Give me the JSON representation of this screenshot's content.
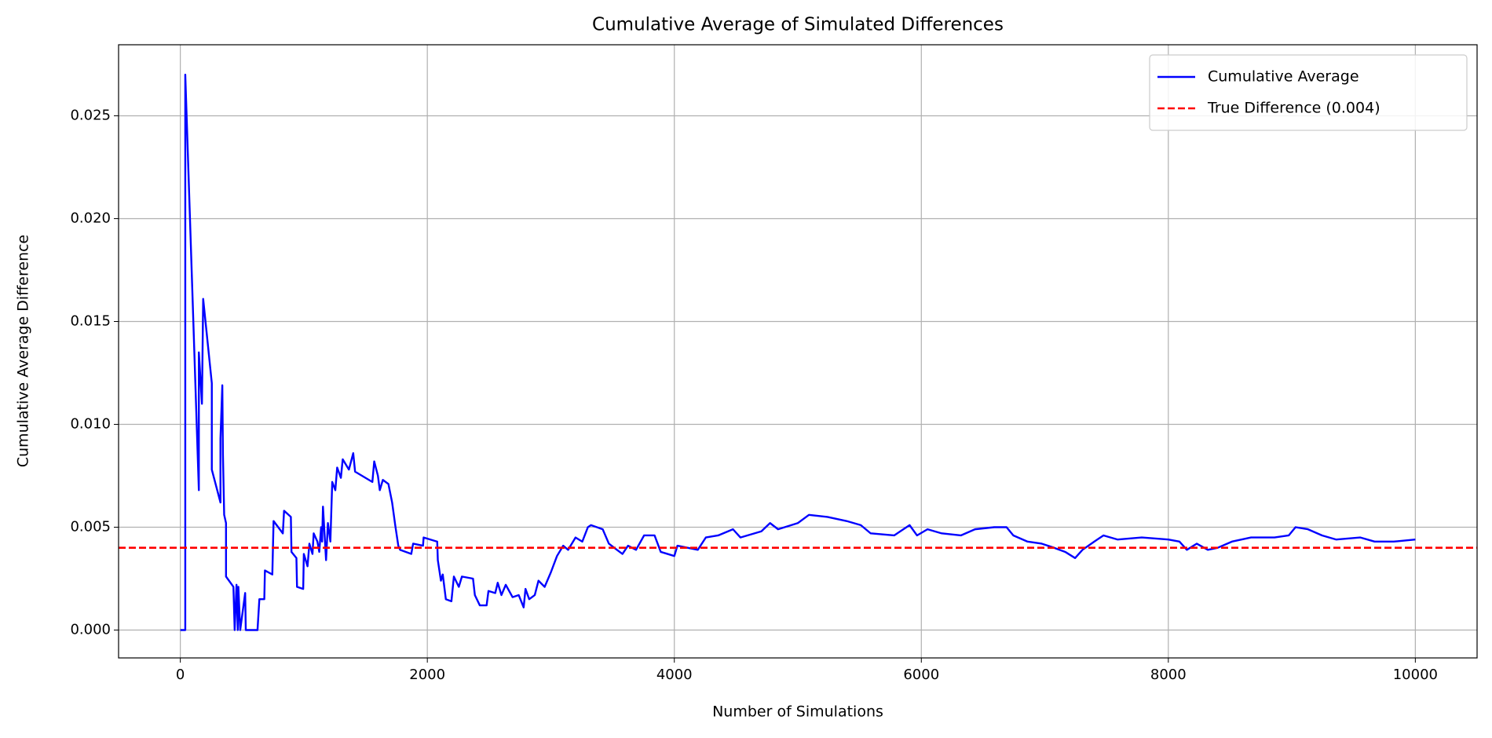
{
  "chart_data": {
    "type": "line",
    "title": "Cumulative Average of Simulated Differences",
    "x_label": "Number of Simulations",
    "y_label": "Cumulative Average Difference",
    "xlim": [
      -500,
      10500
    ],
    "ylim": [
      -0.001355,
      0.028455
    ],
    "xticks": [
      0,
      2000,
      4000,
      6000,
      8000,
      10000
    ],
    "yticks": [
      {
        "value": 0,
        "label": "0.000"
      },
      0.005,
      {
        "value": 0.01,
        "label": "0.010"
      },
      0.015,
      {
        "value": 0.02,
        "label": "0.020"
      },
      0.025
    ],
    "grid": true,
    "legend": "upper right",
    "series": [
      {
        "name": "Cumulative Average",
        "color": "#0000ff",
        "x": [
          0,
          40,
          40,
          150,
          150,
          175,
          185,
          255,
          255,
          325,
          325,
          340,
          345,
          355,
          370,
          370,
          430,
          440,
          455,
          465,
          470,
          485,
          525,
          530,
          625,
          640,
          680,
          685,
          745,
          755,
          830,
          840,
          895,
          900,
          940,
          945,
          995,
          1000,
          1030,
          1045,
          1070,
          1080,
          1110,
          1125,
          1140,
          1148,
          1155,
          1180,
          1195,
          1215,
          1230,
          1255,
          1270,
          1300,
          1315,
          1365,
          1400,
          1415,
          1555,
          1570,
          1600,
          1615,
          1640,
          1685,
          1715,
          1740,
          1765,
          1780,
          1870,
          1885,
          1965,
          1970,
          2080,
          2085,
          2110,
          2125,
          2150,
          2195,
          2215,
          2255,
          2280,
          2370,
          2385,
          2425,
          2480,
          2495,
          2550,
          2570,
          2600,
          2635,
          2690,
          2740,
          2780,
          2795,
          2825,
          2870,
          2900,
          2950,
          3000,
          3050,
          3100,
          3140,
          3200,
          3255,
          3300,
          3325,
          3420,
          3470,
          3535,
          3580,
          3625,
          3690,
          3755,
          3840,
          3890,
          4000,
          4025,
          4190,
          4255,
          4355,
          4475,
          4535,
          4705,
          4775,
          4840,
          5000,
          5090,
          5240,
          5395,
          5510,
          5590,
          5780,
          5905,
          5965,
          6050,
          6165,
          6320,
          6435,
          6590,
          6690,
          6745,
          6860,
          6975,
          7075,
          7165,
          7245,
          7305,
          7400,
          7475,
          7590,
          7785,
          8000,
          8090,
          8150,
          8230,
          8320,
          8400,
          8515,
          8670,
          8860,
          8975,
          9030,
          9130,
          9245,
          9360,
          9555,
          9670,
          9825,
          10000
        ],
        "values": [
          0,
          0,
          0.027,
          0.0068,
          0.0135,
          0.011,
          0.0161,
          0.012,
          0.0078,
          0.0062,
          0.0093,
          0.0119,
          0.0085,
          0.0056,
          0.0052,
          0.0026,
          0.0021,
          0,
          0.0022,
          0,
          0.0021,
          0,
          0.0018,
          0,
          0,
          0.0015,
          0.0015,
          0.0029,
          0.0027,
          0.0053,
          0.0047,
          0.0058,
          0.0055,
          0.0038,
          0.0035,
          0.0021,
          0.002,
          0.0037,
          0.0031,
          0.0042,
          0.0037,
          0.0047,
          0.0043,
          0.0038,
          0.005,
          0.0043,
          0.006,
          0.0034,
          0.0052,
          0.0043,
          0.0072,
          0.0068,
          0.0079,
          0.0074,
          0.0083,
          0.0078,
          0.0086,
          0.0077,
          0.0072,
          0.0082,
          0.0075,
          0.0068,
          0.0073,
          0.0071,
          0.0062,
          0.0051,
          0.0041,
          0.0039,
          0.0037,
          0.0042,
          0.0041,
          0.0045,
          0.0043,
          0.0034,
          0.0024,
          0.0027,
          0.0015,
          0.0014,
          0.0026,
          0.0021,
          0.0026,
          0.0025,
          0.0017,
          0.0012,
          0.0012,
          0.0019,
          0.0018,
          0.0023,
          0.0017,
          0.0022,
          0.0016,
          0.0017,
          0.0011,
          0.002,
          0.0015,
          0.0017,
          0.0024,
          0.0021,
          0.0028,
          0.0036,
          0.0041,
          0.0039,
          0.0045,
          0.0043,
          0.005,
          0.0051,
          0.0049,
          0.0042,
          0.0039,
          0.0037,
          0.0041,
          0.0039,
          0.0046,
          0.0046,
          0.0038,
          0.0036,
          0.0041,
          0.0039,
          0.0045,
          0.0046,
          0.0049,
          0.0045,
          0.0048,
          0.0052,
          0.0049,
          0.0052,
          0.0056,
          0.0055,
          0.0053,
          0.0051,
          0.0047,
          0.0046,
          0.0051,
          0.0046,
          0.0049,
          0.0047,
          0.0046,
          0.0049,
          0.005,
          0.005,
          0.0046,
          0.0043,
          0.0042,
          0.004,
          0.0038,
          0.0035,
          0.0039,
          0.0043,
          0.0046,
          0.0044,
          0.0045,
          0.0044,
          0.0043,
          0.0039,
          0.0042,
          0.0039,
          0.004,
          0.0043,
          0.0045,
          0.0045,
          0.0046,
          0.005,
          0.0049,
          0.0046,
          0.0044,
          0.0045,
          0.0043,
          0.0043,
          0.0044
        ]
      }
    ],
    "reference_line": {
      "name": "True Difference (0.004)",
      "value": 0.004,
      "color": "#ff0000"
    }
  }
}
